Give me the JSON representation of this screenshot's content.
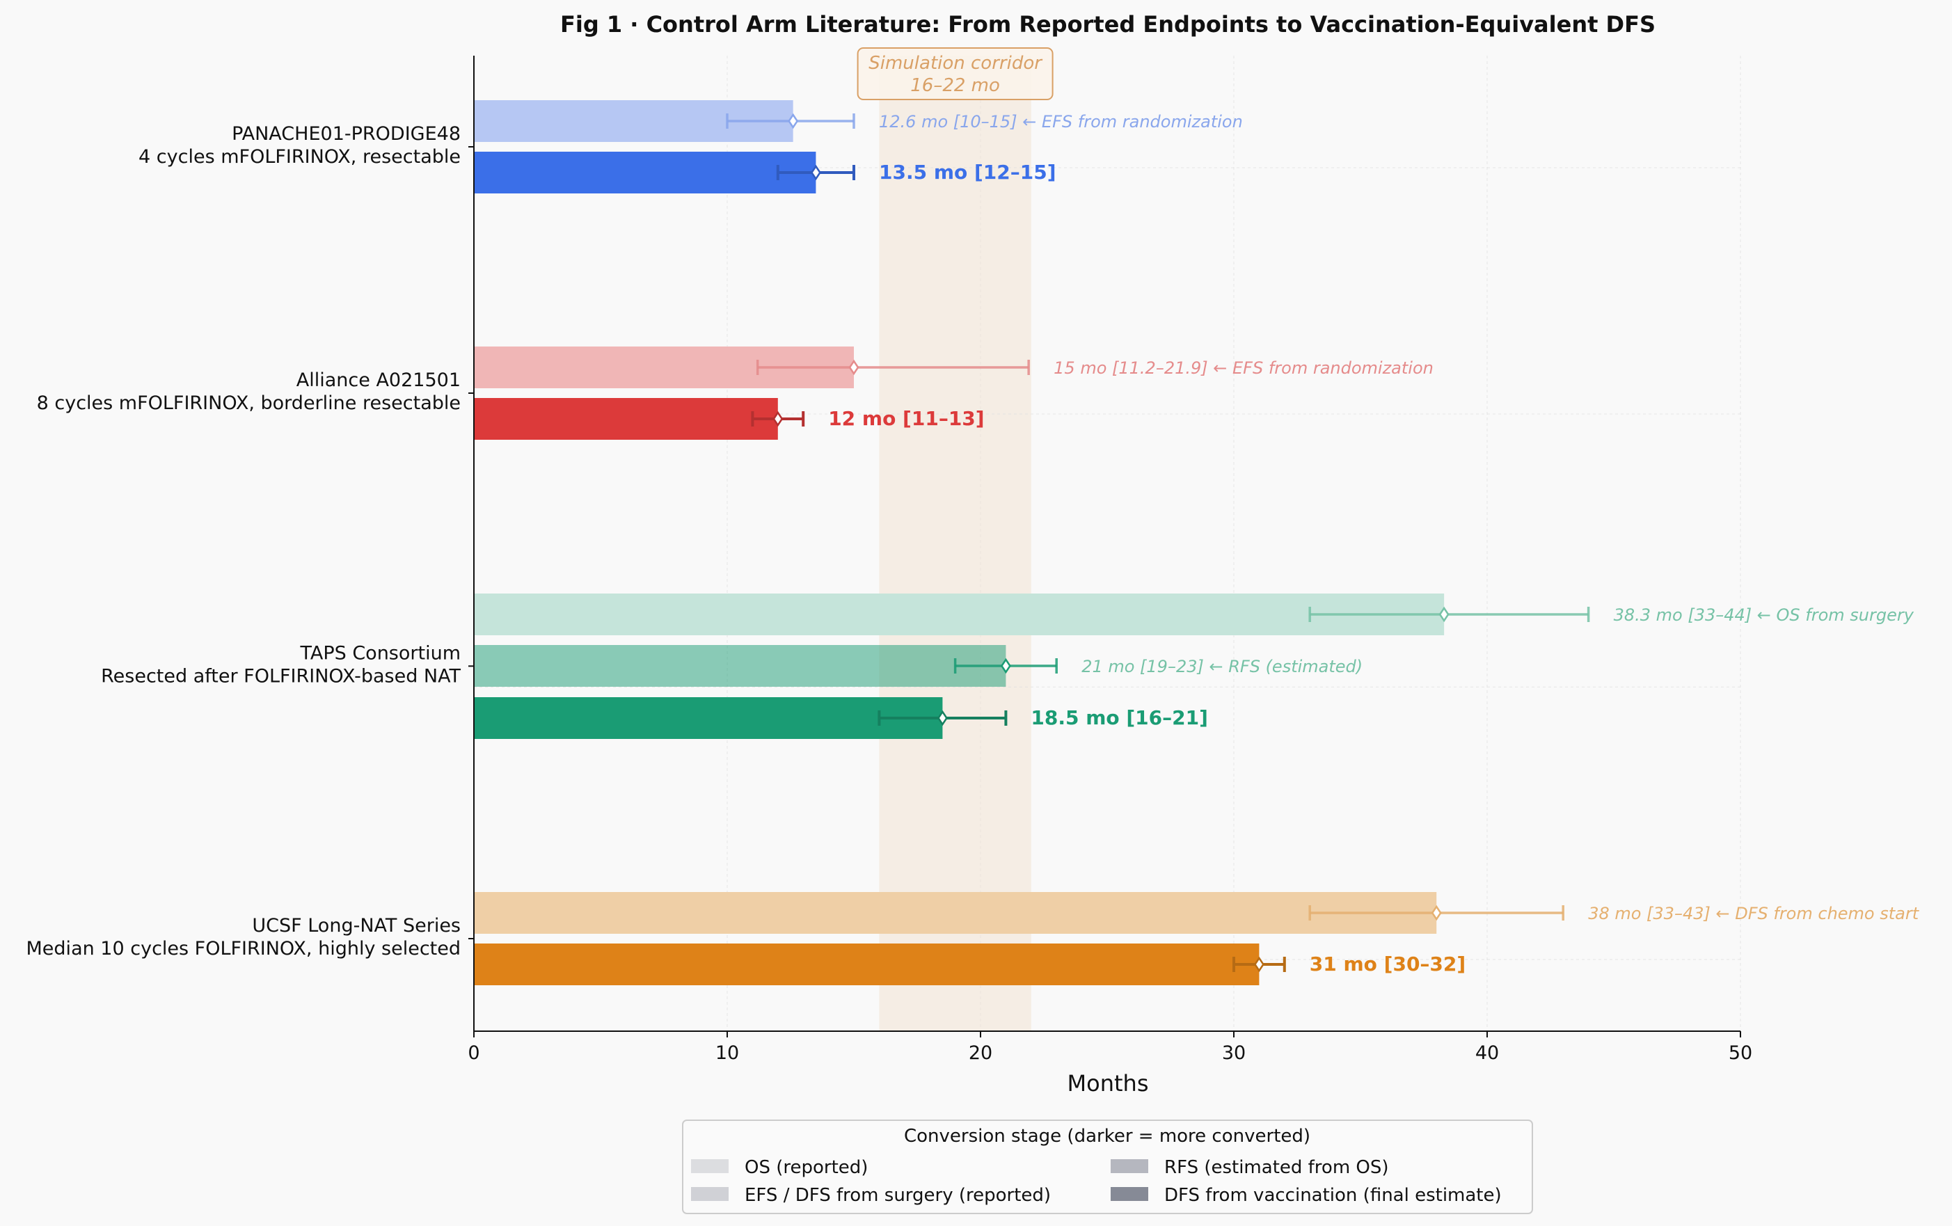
{
  "chart_data": {
    "type": "bar",
    "orientation": "horizontal",
    "title": "Fig 1 · Control Arm Literature: From Reported Endpoints to Vaccination-Equivalent DFS",
    "xlabel": "Months",
    "ylabel": "",
    "xlim": [
      0,
      50
    ],
    "xticks": [
      0,
      10,
      20,
      30,
      40,
      50
    ],
    "grid": true,
    "corridor": {
      "from": 16,
      "to": 22,
      "label_line1": "Simulation corridor",
      "label_line2": "16–22 mo",
      "color": "#d9a066"
    },
    "groups": [
      {
        "name": "PANACHE01-PRODIGE48",
        "subtitle": "4 cycles mFOLFIRINOX, resectable",
        "color": "#3b6fe8",
        "light_color": "#b6c7f3",
        "label_color": "#89a6ec",
        "bars": [
          {
            "stage": "EFS from randomization",
            "value": 12.6,
            "lo": 10,
            "hi": 15,
            "final": false,
            "label": "12.6 mo [10–15]  ← EFS from randomization"
          },
          {
            "stage": "DFS from vaccination",
            "value": 13.5,
            "lo": 12,
            "hi": 15,
            "final": true,
            "label": "13.5 mo [12–15]"
          }
        ]
      },
      {
        "name": "Alliance A021501",
        "subtitle": "8 cycles mFOLFIRINOX, borderline resectable",
        "color": "#dc3a3a",
        "light_color": "#f0b6b6",
        "label_color": "#e58b8b",
        "bars": [
          {
            "stage": "EFS from randomization",
            "value": 15,
            "lo": 11.2,
            "hi": 21.9,
            "final": false,
            "label": "15 mo [11.2–21.9]  ← EFS from randomization"
          },
          {
            "stage": "DFS from vaccination",
            "value": 12,
            "lo": 11,
            "hi": 13,
            "final": true,
            "label": "12 mo [11–13]"
          }
        ]
      },
      {
        "name": "TAPS Consortium",
        "subtitle": "Resected after FOLFIRINOX-based NAT",
        "color": "#1a9c74",
        "light_color": "#c5e4da",
        "label_color": "#76c2a6",
        "bars": [
          {
            "stage": "OS from surgery",
            "value": 38.3,
            "lo": 33,
            "hi": 44,
            "final": false,
            "label": "38.3 mo [33–44]  ← OS from surgery"
          },
          {
            "stage": "RFS (estimated)",
            "value": 21,
            "lo": 19,
            "hi": 23,
            "final": false,
            "label": "21 mo [19–23]  ← RFS (estimated)"
          },
          {
            "stage": "DFS from vaccination",
            "value": 18.5,
            "lo": 16,
            "hi": 21,
            "final": true,
            "label": "18.5 mo [16–21]"
          }
        ]
      },
      {
        "name": "UCSF Long-NAT Series",
        "subtitle": "Median 10 cycles FOLFIRINOX, highly selected",
        "color": "#de8218",
        "light_color": "#efcfa6",
        "label_color": "#e5b070",
        "bars": [
          {
            "stage": "DFS from chemo start",
            "value": 38,
            "lo": 33,
            "hi": 43,
            "final": false,
            "label": "38 mo [33–43]  ← DFS from chemo start"
          },
          {
            "stage": "DFS from vaccination",
            "value": 31,
            "lo": 30,
            "hi": 32,
            "final": true,
            "label": "31 mo [30–32]"
          }
        ]
      }
    ],
    "legend": {
      "title": "Conversion stage (darker = more converted)",
      "placement": "bottom-center",
      "items": [
        {
          "label": "OS (reported)",
          "color": "#dcdde0"
        },
        {
          "label": "EFS / DFS from surgery (reported)",
          "color": "#d0d1d6"
        },
        {
          "label": "RFS (estimated from OS)",
          "color": "#b5b7bf"
        },
        {
          "label": "DFS from vaccination (final estimate)",
          "color": "#868a96"
        }
      ]
    }
  }
}
